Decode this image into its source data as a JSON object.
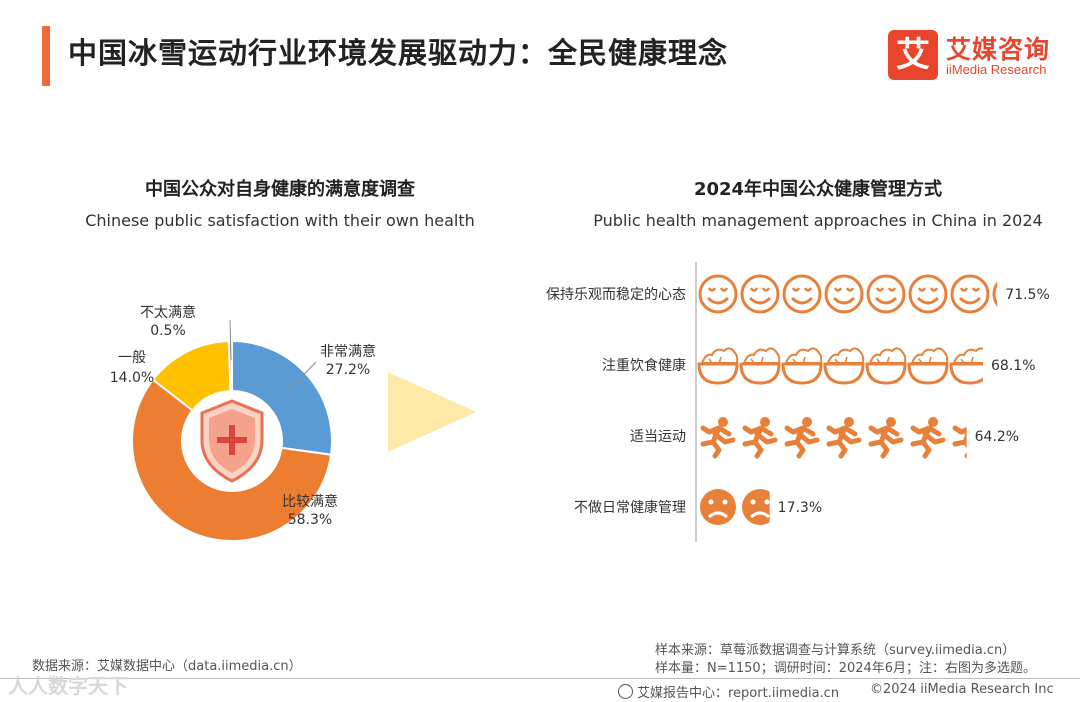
{
  "header": {
    "title": "中国冰雪运动行业环境发展驱动力：全民健康理念"
  },
  "logo": {
    "mark": "艾",
    "cn": "艾媒咨询",
    "en": "iiMedia Research"
  },
  "chart_data": [
    {
      "type": "pie",
      "title": "中国公众对自身健康的满意度调查",
      "subtitle": "Chinese public satisfaction with their own health",
      "slices": [
        {
          "label": "非常满意",
          "value": 27.2,
          "display": "27.2%",
          "color": "#5b9bd5"
        },
        {
          "label": "比较满意",
          "value": 58.3,
          "display": "58.3%",
          "color": "#ed7d31"
        },
        {
          "label": "一般",
          "value": 14.0,
          "display": "14.0%",
          "color": "#ffc000"
        },
        {
          "label": "不太满意",
          "value": 0.5,
          "display": "0.5%",
          "color": "#a5a5a5"
        }
      ]
    },
    {
      "type": "bar",
      "title": "2024年中国公众健康管理方式",
      "subtitle": "Public health management approaches in China in 2024",
      "categories": [
        "保持乐观而稳定的心态",
        "注重饮食健康",
        "适当运动",
        "不做日常健康管理"
      ],
      "values": [
        71.5,
        68.1,
        64.2,
        17.3
      ],
      "labels": [
        "71.5%",
        "68.1%",
        "64.2%",
        "17.3%"
      ],
      "icons": [
        "smile-face-icon",
        "food-bowl-icon",
        "runner-icon",
        "sad-face-icon"
      ],
      "color": "#e8803a"
    }
  ],
  "footer": {
    "source_left": "数据来源：艾媒数据中心（data.iimedia.cn）",
    "sample_source": "样本来源：草莓派数据调查与计算系统（survey.iimedia.cn）",
    "sample_info": "样本量：N=1150；调研时间：2024年6月；注：右图为多选题。",
    "report": "艾媒报告中心：report.iimedia.cn",
    "copyright": "©2024 iiMedia Research Inc",
    "watermark": "人人数字天下"
  }
}
